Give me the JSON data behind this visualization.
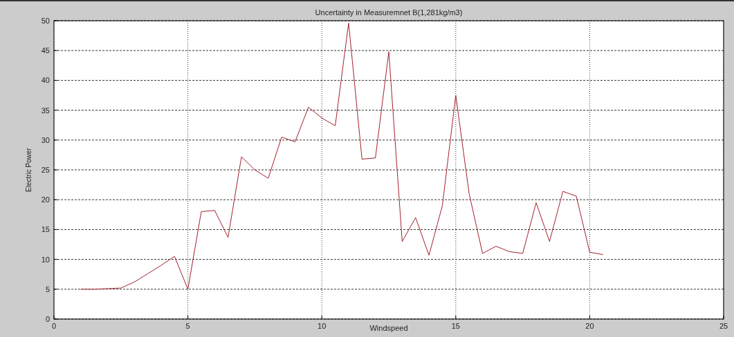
{
  "chart_data": {
    "type": "line",
    "title": "Uncertainty in Measuremnet B(1,281kg/m3)",
    "xlabel": "Windspeed",
    "ylabel": "Electric Power",
    "x": [
      1,
      1.5,
      2,
      2.5,
      3,
      3.5,
      4,
      4.5,
      5,
      5.5,
      6,
      6.5,
      7,
      7.5,
      8,
      8.5,
      9,
      9.5,
      10,
      10.5,
      11,
      11.5,
      12,
      12.5,
      13,
      13.5,
      14,
      14.5,
      15,
      15.5,
      16,
      16.5,
      17,
      17.5,
      18,
      18.5,
      19,
      19.5,
      20,
      20.5
    ],
    "series": [
      {
        "color": "#a3202c",
        "values": [
          5,
          5,
          5.1,
          5.2,
          6.2,
          7.6,
          9,
          10.5,
          5,
          18,
          18.2,
          13.7,
          27.2,
          25,
          23.6,
          30.5,
          29.7,
          35.5,
          33.7,
          32.4,
          49.6,
          26.8,
          27,
          44.8,
          13,
          17,
          10.7,
          19,
          37.5,
          21,
          11,
          12.2,
          11.3,
          11,
          19.5,
          13,
          21.4,
          20.6,
          11.2,
          10.8
        ]
      }
    ],
    "xlim": [
      0,
      25
    ],
    "xticks": [
      0,
      5,
      10,
      15,
      20,
      25
    ],
    "ylim": [
      0,
      50
    ],
    "yticks": [
      0,
      5,
      10,
      15,
      20,
      25,
      30,
      35,
      40,
      45,
      50
    ],
    "grid": true,
    "line_style": "solid",
    "marker": "none"
  }
}
